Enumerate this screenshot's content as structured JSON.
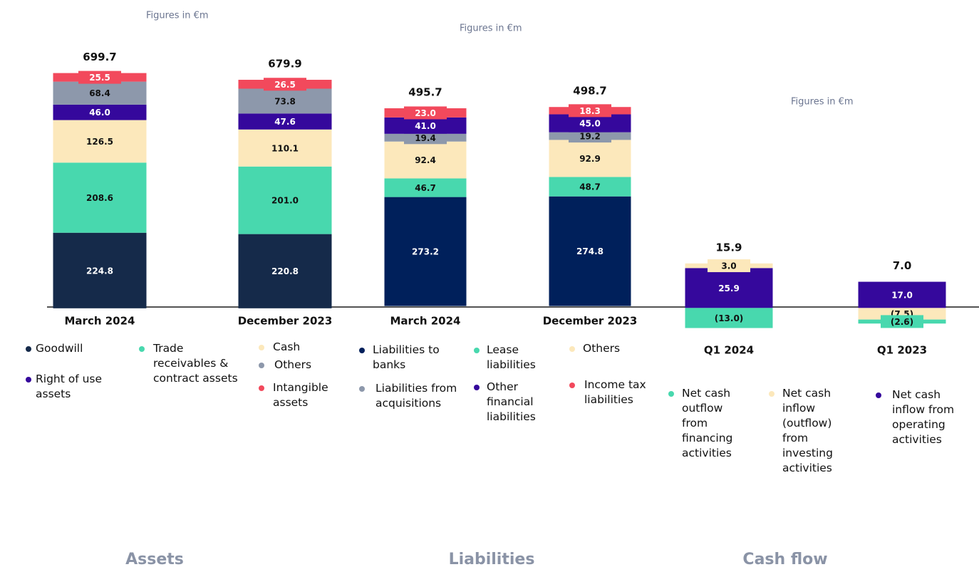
{
  "chart_data": [
    {
      "type": "bar",
      "stacked": true,
      "title": "Assets",
      "note": "Figures in €m",
      "categories": [
        "March 2024",
        "December 2023"
      ],
      "totals": [
        699.7,
        679.9
      ],
      "total_labels": [
        "699.7",
        "679.9"
      ],
      "ylim": [
        -100,
        790
      ],
      "series": [
        {
          "name": "Goodwill",
          "color": "#152a4a",
          "values": [
            224.8,
            220.8
          ],
          "value_labels": [
            "224.8",
            "220.8"
          ]
        },
        {
          "name": "Trade receivables & contract assets",
          "color": "#48d8ae",
          "values": [
            208.6,
            201.0
          ],
          "value_labels": [
            "208.6",
            "201.0"
          ]
        },
        {
          "name": "Cash",
          "color": "#fce8bb",
          "values": [
            126.5,
            110.1
          ],
          "value_labels": [
            "126.5",
            "110.1"
          ]
        },
        {
          "name": "Right of use assets",
          "color": "#35089c",
          "values": [
            46.0,
            47.6
          ],
          "value_labels": [
            "46.0",
            "47.6"
          ]
        },
        {
          "name": "Others",
          "color": "#8d98ab",
          "values": [
            68.4,
            73.8
          ],
          "value_labels": [
            "68.4",
            "73.8"
          ]
        },
        {
          "name": "Intangible assets",
          "color": "#f2495c",
          "values": [
            25.5,
            26.5
          ],
          "value_labels": [
            "25.5",
            "26.5"
          ]
        }
      ]
    },
    {
      "type": "bar",
      "stacked": true,
      "title": "Liabilities",
      "note": "Figures in €m",
      "categories": [
        "March 2024",
        "December 2023"
      ],
      "totals": [
        495.7,
        498.7
      ],
      "total_labels": [
        "495.7",
        "498.7"
      ],
      "ylim": [
        -90,
        660
      ],
      "series": [
        {
          "name": "Liabilities to banks",
          "color": "#00205b",
          "values": [
            273.2,
            274.8
          ],
          "value_labels": [
            "273.2",
            "274.8"
          ]
        },
        {
          "name": "Lease liabilities",
          "color": "#48d8ae",
          "values": [
            46.7,
            48.7
          ],
          "value_labels": [
            "46.7",
            "48.7"
          ]
        },
        {
          "name": "Others",
          "color": "#fce8bb",
          "values": [
            92.4,
            92.9
          ],
          "value_labels": [
            "92.4",
            "92.9"
          ]
        },
        {
          "name": "Liabilities from acquisitions",
          "color": "#8d98ab",
          "values": [
            19.4,
            19.2
          ],
          "value_labels": [
            "19.4",
            "19.2"
          ]
        },
        {
          "name": "Other financial liabilities",
          "color": "#35089c",
          "values": [
            41.0,
            45.0
          ],
          "value_labels": [
            "41.0",
            "45.0"
          ]
        },
        {
          "name": "Income tax liabilities",
          "color": "#f2495c",
          "values": [
            23.0,
            18.3
          ],
          "value_labels": [
            "23.0",
            "18.3"
          ]
        }
      ]
    },
    {
      "type": "bar",
      "stacked": true,
      "title": "Cash flow",
      "note": "Figures in €m",
      "categories": [
        "Q1 2024",
        "Q1 2023"
      ],
      "totals": [
        15.9,
        7.0
      ],
      "total_labels": [
        "15.9",
        "7.0"
      ],
      "ylim": [
        -22,
        172
      ],
      "series": [
        {
          "name": "Net cash inflow from operating activities",
          "color": "#35089c",
          "values": [
            25.9,
            17.0
          ],
          "value_labels": [
            "25.9",
            "17.0"
          ]
        },
        {
          "name": "Net cash inflow (outflow) from investing activities",
          "color": "#fce8bb",
          "values": [
            3.0,
            -7.5
          ],
          "value_labels": [
            "3.0",
            "(7.5)"
          ]
        },
        {
          "name": "Net cash outflow from financing activities",
          "color": "#48d8ae",
          "values": [
            -13.0,
            -2.6
          ],
          "value_labels": [
            "(13.0)",
            "(2.6)"
          ]
        }
      ]
    }
  ]
}
